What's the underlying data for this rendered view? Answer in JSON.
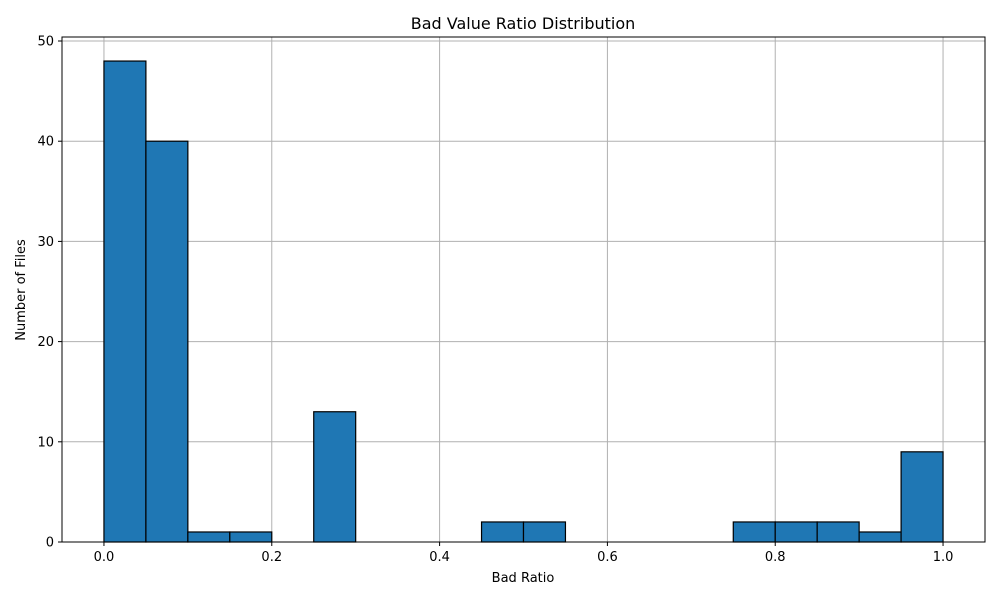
{
  "chart_data": {
    "type": "bar",
    "title": "Bad Value Ratio Distribution",
    "xlabel": "Bad Ratio",
    "ylabel": "Number of Files",
    "bin_edges": [
      0.0,
      0.05,
      0.1,
      0.15,
      0.2,
      0.25,
      0.3,
      0.35,
      0.4,
      0.45,
      0.5,
      0.55,
      0.6,
      0.65,
      0.7,
      0.75,
      0.8,
      0.85,
      0.9,
      0.95,
      1.0
    ],
    "values": [
      48,
      40,
      1,
      1,
      0,
      13,
      0,
      0,
      0,
      2,
      2,
      0,
      0,
      0,
      0,
      2,
      2,
      2,
      1,
      9
    ],
    "xlim": [
      -0.05,
      1.05
    ],
    "ylim": [
      0,
      50.4
    ],
    "xticks": [
      0.0,
      0.2,
      0.4,
      0.6,
      0.8,
      1.0
    ],
    "xtick_labels": [
      "0.0",
      "0.2",
      "0.4",
      "0.6",
      "0.8",
      "1.0"
    ],
    "yticks": [
      0,
      10,
      20,
      30,
      40,
      50
    ],
    "ytick_labels": [
      "0",
      "10",
      "20",
      "30",
      "40",
      "50"
    ],
    "grid": true,
    "bar_color": "#1f77b4",
    "edge_color": "#000000",
    "grid_color": "#b0b0b0"
  }
}
